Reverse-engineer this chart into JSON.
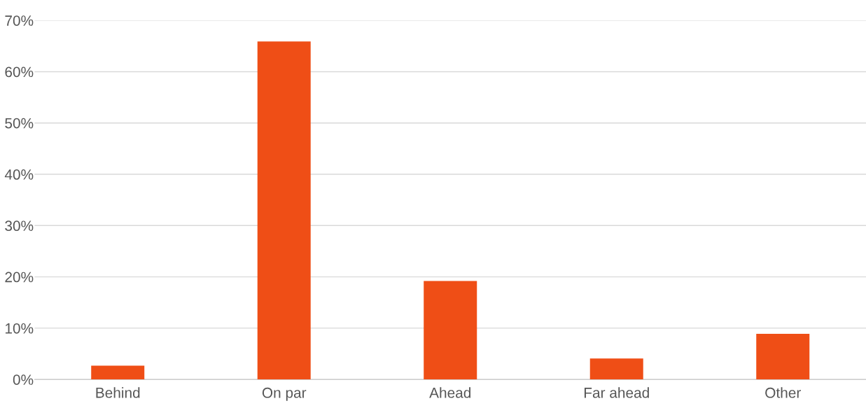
{
  "chart_data": {
    "type": "bar",
    "categories": [
      "Behind",
      "On par",
      "Ahead",
      "Far ahead",
      "Other"
    ],
    "values": [
      2.7,
      65.9,
      19.2,
      4.1,
      8.9
    ],
    "color": "#ef4e16",
    "ylim": [
      0,
      70
    ],
    "yticks": [
      {
        "value": 0,
        "label": "0%"
      },
      {
        "value": 10,
        "label": "10%"
      },
      {
        "value": 20,
        "label": "20%"
      },
      {
        "value": 30,
        "label": "30%"
      },
      {
        "value": 40,
        "label": "40%"
      },
      {
        "value": 50,
        "label": "50%"
      },
      {
        "value": 60,
        "label": "60%"
      },
      {
        "value": 70,
        "label": "70%"
      }
    ],
    "grid": "y",
    "legend": false
  }
}
